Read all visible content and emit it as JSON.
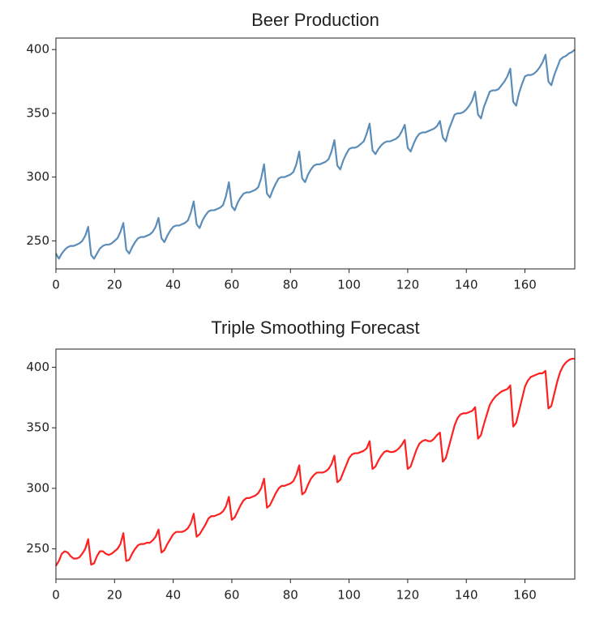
{
  "chart_data": [
    {
      "type": "line",
      "title": "Beer Production",
      "color": "#5b8db8",
      "x": [
        0,
        1,
        2,
        3,
        4,
        5,
        6,
        7,
        8,
        9,
        10,
        11,
        12,
        13,
        14,
        15,
        16,
        17,
        18,
        19,
        20,
        21,
        22,
        23,
        24,
        25,
        26,
        27,
        28,
        29,
        30,
        31,
        32,
        33,
        34,
        35,
        36,
        37,
        38,
        39,
        40,
        41,
        42,
        43,
        44,
        45,
        46,
        47,
        48,
        49,
        50,
        51,
        52,
        53,
        54,
        55,
        56,
        57,
        58,
        59,
        60,
        61,
        62,
        63,
        64,
        65,
        66,
        67,
        68,
        69,
        70,
        71,
        72,
        73,
        74,
        75,
        76,
        77,
        78,
        79,
        80,
        81,
        82,
        83,
        84,
        85,
        86,
        87,
        88,
        89,
        90,
        91,
        92,
        93,
        94,
        95,
        96,
        97,
        98,
        99,
        100,
        101,
        102,
        103,
        104,
        105,
        106,
        107,
        108,
        109,
        110,
        111,
        112,
        113,
        114,
        115,
        116,
        117,
        118,
        119,
        120,
        121,
        122,
        123,
        124,
        125,
        126,
        127,
        128,
        129,
        130,
        131,
        132,
        133,
        134,
        135,
        136,
        137,
        138,
        139,
        140,
        141,
        142,
        143,
        144,
        145,
        146,
        147,
        148,
        149,
        150,
        151,
        152,
        153,
        154,
        155,
        156,
        157,
        158,
        159,
        160,
        161,
        162,
        163,
        164,
        165,
        166,
        167,
        168,
        169,
        170,
        171,
        172,
        173,
        174,
        175,
        176,
        177
      ],
      "values": [
        240,
        236,
        240,
        243,
        245,
        246,
        246,
        247,
        248,
        250,
        254,
        261,
        239,
        236,
        240,
        244,
        246,
        247,
        247,
        248,
        250,
        252,
        257,
        264,
        243,
        240,
        245,
        249,
        252,
        253,
        253,
        254,
        255,
        257,
        261,
        268,
        252,
        249,
        254,
        258,
        261,
        262,
        262,
        263,
        264,
        266,
        272,
        281,
        263,
        260,
        266,
        270,
        273,
        274,
        274,
        275,
        276,
        278,
        285,
        296,
        277,
        274,
        280,
        284,
        287,
        288,
        288,
        289,
        290,
        292,
        299,
        310,
        287,
        284,
        290,
        295,
        299,
        300,
        300,
        301,
        302,
        304,
        310,
        320,
        299,
        296,
        302,
        306,
        309,
        310,
        310,
        311,
        312,
        314,
        320,
        329,
        309,
        306,
        313,
        318,
        322,
        323,
        323,
        324,
        326,
        328,
        334,
        342,
        321,
        318,
        322,
        325,
        327,
        328,
        328,
        329,
        330,
        332,
        336,
        341,
        323,
        320,
        326,
        331,
        334,
        335,
        335,
        336,
        337,
        338,
        340,
        344,
        331,
        328,
        337,
        343,
        349,
        350,
        350,
        351,
        353,
        356,
        360,
        367,
        349,
        346,
        355,
        361,
        367,
        368,
        368,
        369,
        372,
        375,
        379,
        385,
        359,
        356,
        366,
        373,
        379,
        380,
        380,
        381,
        383,
        386,
        390,
        396,
        375,
        372,
        380,
        386,
        392,
        394,
        395,
        397,
        398,
        400
      ],
      "xlim": [
        0,
        177
      ],
      "xticks": [
        0,
        20,
        40,
        60,
        80,
        100,
        120,
        140,
        160
      ],
      "ylim": [
        228,
        409
      ],
      "yticks": [
        250,
        300,
        350,
        400
      ]
    },
    {
      "type": "line",
      "title": "Triple Smoothing Forecast",
      "color": "#ff2020",
      "x": [
        0,
        1,
        2,
        3,
        4,
        5,
        6,
        7,
        8,
        9,
        10,
        11,
        12,
        13,
        14,
        15,
        16,
        17,
        18,
        19,
        20,
        21,
        22,
        23,
        24,
        25,
        26,
        27,
        28,
        29,
        30,
        31,
        32,
        33,
        34,
        35,
        36,
        37,
        38,
        39,
        40,
        41,
        42,
        43,
        44,
        45,
        46,
        47,
        48,
        49,
        50,
        51,
        52,
        53,
        54,
        55,
        56,
        57,
        58,
        59,
        60,
        61,
        62,
        63,
        64,
        65,
        66,
        67,
        68,
        69,
        70,
        71,
        72,
        73,
        74,
        75,
        76,
        77,
        78,
        79,
        80,
        81,
        82,
        83,
        84,
        85,
        86,
        87,
        88,
        89,
        90,
        91,
        92,
        93,
        94,
        95,
        96,
        97,
        98,
        99,
        100,
        101,
        102,
        103,
        104,
        105,
        106,
        107,
        108,
        109,
        110,
        111,
        112,
        113,
        114,
        115,
        116,
        117,
        118,
        119,
        120,
        121,
        122,
        123,
        124,
        125,
        126,
        127,
        128,
        129,
        130,
        131,
        132,
        133,
        134,
        135,
        136,
        137,
        138,
        139,
        140,
        141,
        142,
        143,
        144,
        145,
        146,
        147,
        148,
        149,
        150,
        151,
        152,
        153,
        154,
        155,
        156,
        157,
        158,
        159,
        160,
        161,
        162,
        163,
        164,
        165,
        166,
        167,
        168,
        169,
        170,
        171,
        172,
        173,
        174,
        175,
        176,
        177
      ],
      "values": [
        236,
        240,
        246,
        248,
        247,
        244,
        242,
        242,
        243,
        246,
        250,
        258,
        237,
        238,
        244,
        248,
        248,
        246,
        245,
        246,
        248,
        250,
        254,
        263,
        240,
        241,
        246,
        250,
        253,
        254,
        254,
        255,
        255,
        257,
        260,
        266,
        247,
        249,
        254,
        258,
        262,
        264,
        264,
        264,
        265,
        267,
        271,
        279,
        260,
        262,
        266,
        270,
        275,
        277,
        277,
        278,
        279,
        281,
        285,
        293,
        274,
        276,
        281,
        286,
        290,
        292,
        292,
        293,
        294,
        296,
        300,
        308,
        284,
        286,
        291,
        296,
        300,
        302,
        302,
        303,
        304,
        306,
        311,
        319,
        295,
        297,
        303,
        308,
        311,
        313,
        313,
        313,
        314,
        316,
        320,
        327,
        305,
        307,
        313,
        319,
        325,
        328,
        329,
        329,
        330,
        331,
        333,
        339,
        316,
        318,
        323,
        327,
        330,
        331,
        330,
        330,
        331,
        333,
        336,
        340,
        316,
        318,
        325,
        332,
        337,
        339,
        340,
        339,
        339,
        341,
        344,
        346,
        322,
        325,
        334,
        343,
        352,
        358,
        361,
        362,
        362,
        363,
        364,
        367,
        341,
        344,
        353,
        361,
        369,
        373,
        376,
        378,
        380,
        381,
        382,
        385,
        351,
        354,
        364,
        374,
        384,
        389,
        392,
        393,
        394,
        395,
        395,
        397,
        366,
        368,
        378,
        388,
        396,
        401,
        404,
        406,
        407,
        407
      ],
      "xlim": [
        0,
        177
      ],
      "xticks": [
        0,
        20,
        40,
        60,
        80,
        100,
        120,
        140,
        160
      ],
      "ylim": [
        225,
        415
      ],
      "yticks": [
        250,
        300,
        350,
        400
      ]
    }
  ]
}
